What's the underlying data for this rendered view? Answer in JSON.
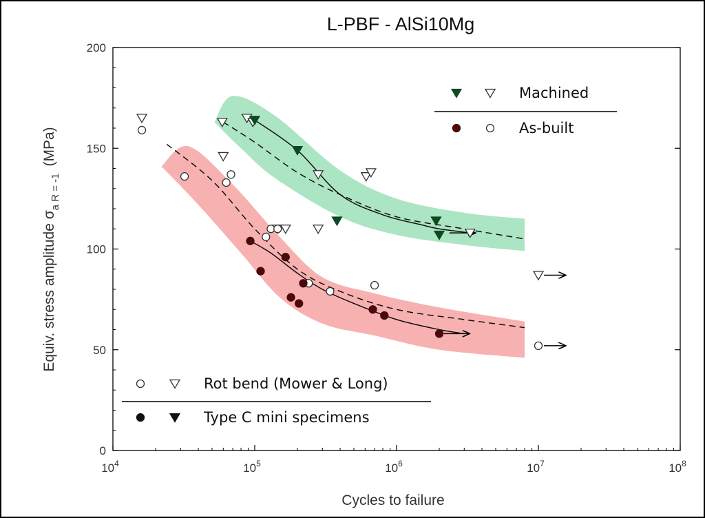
{
  "chart_data": {
    "type": "scatter",
    "title": "L-PBF - AlSi10Mg",
    "xlabel": "Cycles to failure",
    "ylabel": "Equiv. stress amplitude σ",
    "ylabel_subscript": "a R = -1",
    "ylabel_unit": "(MPa)",
    "x_scale": "log",
    "xlim": [
      10000,
      100000000
    ],
    "ylim": [
      0,
      200
    ],
    "x_ticks": [
      {
        "value": 10000,
        "base": "10",
        "exp": "4"
      },
      {
        "value": 100000,
        "base": "10",
        "exp": "5"
      },
      {
        "value": 1000000,
        "base": "10",
        "exp": "6"
      },
      {
        "value": 10000000,
        "base": "10",
        "exp": "7"
      },
      {
        "value": 100000000,
        "base": "10",
        "exp": "8"
      }
    ],
    "y_ticks": [
      "0",
      "50",
      "100",
      "150",
      "200"
    ],
    "grid": false,
    "legend_top": {
      "placement": "top-right",
      "entries": [
        {
          "label": "Machined",
          "markers": [
            "filled-triangle",
            "open-triangle"
          ]
        },
        {
          "label": "As-built",
          "markers": [
            "filled-circle",
            "open-circle"
          ]
        }
      ]
    },
    "legend_bottom": {
      "placement": "bottom-left",
      "entries": [
        {
          "label": "Rot bend (Mower & Long)",
          "markers": [
            "open-circle",
            "open-triangle"
          ]
        },
        {
          "label": "Type C mini specimens",
          "markers": [
            "filled-circle",
            "filled-triangle"
          ]
        }
      ]
    },
    "colors": {
      "machined_band": "#9ee0b8",
      "asbuilt_band": "#f7a3a3",
      "machined_marker": "#0d4a22",
      "asbuilt_marker": "#4a0a0a",
      "open_marker": "#333333"
    },
    "series": [
      {
        "name": "Rot bend (Mower & Long)",
        "condition": "Machined",
        "marker": "open-triangle",
        "points": [
          [
            16000,
            165
          ],
          [
            59000,
            163
          ],
          [
            60000,
            146
          ],
          [
            88000,
            165
          ],
          [
            97000,
            163
          ],
          [
            145000,
            110
          ],
          [
            165000,
            110
          ],
          [
            280000,
            137
          ],
          [
            280000,
            110
          ],
          [
            610000,
            136
          ],
          [
            660000,
            138
          ],
          [
            3300000,
            108
          ]
        ],
        "runouts": [
          [
            10000000,
            87
          ]
        ]
      },
      {
        "name": "Rot bend (Mower & Long)",
        "condition": "As-built",
        "marker": "open-circle",
        "points": [
          [
            16000,
            159
          ],
          [
            32000,
            136
          ],
          [
            63000,
            133
          ],
          [
            68000,
            137
          ],
          [
            120000,
            106
          ],
          [
            130000,
            110
          ],
          [
            145000,
            110
          ],
          [
            240000,
            83
          ],
          [
            340000,
            79
          ],
          [
            700000,
            82
          ]
        ],
        "runouts": [
          [
            10000000,
            52
          ]
        ]
      },
      {
        "name": "Type C mini specimens",
        "condition": "Machined",
        "marker": "filled-triangle",
        "points": [
          [
            100000,
            164
          ],
          [
            200000,
            149
          ],
          [
            380000,
            114
          ],
          [
            1900000,
            114
          ],
          [
            2000000,
            107
          ]
        ],
        "runouts": []
      },
      {
        "name": "Type C mini specimens",
        "condition": "As-built",
        "marker": "filled-circle",
        "points": [
          [
            93000,
            104
          ],
          [
            110000,
            89
          ],
          [
            165000,
            96
          ],
          [
            180000,
            76
          ],
          [
            205000,
            73
          ],
          [
            220000,
            83
          ],
          [
            680000,
            70
          ],
          [
            820000,
            67
          ],
          [
            2000000,
            58
          ]
        ],
        "runouts": []
      }
    ],
    "fits": [
      {
        "condition": "Machined",
        "style": "solid",
        "points": [
          [
            100000,
            164
          ],
          [
            200000,
            149
          ],
          [
            400000,
            127
          ],
          [
            800000,
            117
          ],
          [
            1500000,
            112
          ],
          [
            2000000,
            110
          ],
          [
            3300000,
            108
          ]
        ],
        "runout_arrow": true
      },
      {
        "condition": "Machined",
        "style": "dashed",
        "points": [
          [
            60000,
            163
          ],
          [
            100000,
            153
          ],
          [
            200000,
            138
          ],
          [
            400000,
            127
          ],
          [
            1000000,
            116
          ],
          [
            3000000,
            110
          ],
          [
            8000000,
            105
          ]
        ],
        "runout_arrow": false
      },
      {
        "condition": "As-built",
        "style": "solid",
        "points": [
          [
            93000,
            104
          ],
          [
            130000,
            98
          ],
          [
            200000,
            88
          ],
          [
            300000,
            80
          ],
          [
            500000,
            73
          ],
          [
            1000000,
            65
          ],
          [
            2000000,
            60
          ],
          [
            3000000,
            58
          ]
        ],
        "runout_arrow": true
      },
      {
        "condition": "As-built",
        "style": "dashed",
        "points": [
          [
            24000,
            152
          ],
          [
            50000,
            134
          ],
          [
            100000,
            110
          ],
          [
            200000,
            90
          ],
          [
            400000,
            79
          ],
          [
            1000000,
            70
          ],
          [
            3000000,
            65
          ],
          [
            8000000,
            61
          ]
        ],
        "runout_arrow": false
      }
    ],
    "scatter_bands": [
      {
        "condition": "Machined",
        "upper": [
          [
            52000,
            163
          ],
          [
            70000,
            176
          ],
          [
            140000,
            166
          ],
          [
            400000,
            139
          ],
          [
            1000000,
            125
          ],
          [
            3000000,
            118
          ],
          [
            8000000,
            115
          ]
        ],
        "lower": [
          [
            8000000,
            99
          ],
          [
            3000000,
            102
          ],
          [
            1000000,
            107
          ],
          [
            400000,
            116
          ],
          [
            140000,
            135
          ],
          [
            80000,
            150
          ],
          [
            52000,
            163
          ]
        ]
      },
      {
        "condition": "As-built",
        "upper": [
          [
            22000,
            141
          ],
          [
            34000,
            151
          ],
          [
            70000,
            132
          ],
          [
            150000,
            106
          ],
          [
            300000,
            86
          ],
          [
            700000,
            78
          ],
          [
            2000000,
            71
          ],
          [
            8000000,
            64
          ]
        ],
        "lower": [
          [
            8000000,
            46
          ],
          [
            2000000,
            50
          ],
          [
            700000,
            57
          ],
          [
            300000,
            63
          ],
          [
            150000,
            76
          ],
          [
            80000,
            98
          ],
          [
            40000,
            122
          ],
          [
            22000,
            141
          ]
        ]
      }
    ]
  }
}
